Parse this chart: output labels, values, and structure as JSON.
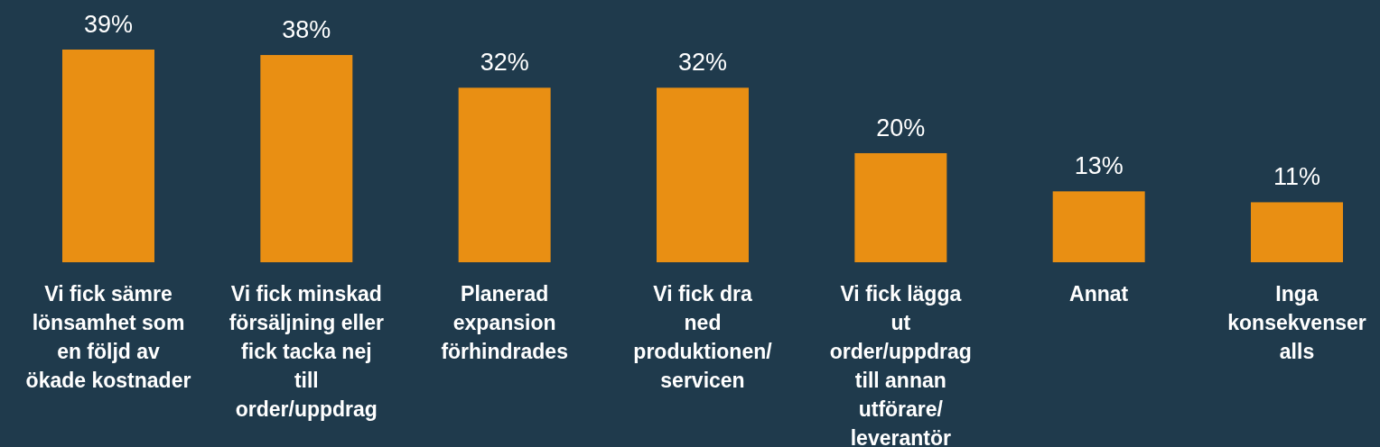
{
  "chart_data": {
    "type": "bar",
    "categories": [
      "Vi fick sämre\nlönsamhet som\nen följd av\nökade kostnader",
      "Vi fick minskad\nförsäljning eller\nfick tacka nej\ntill\norder/uppdrag",
      "Planerad\nexpansion\nförhindrades",
      "Vi fick dra\nned\nproduktionen/\nservicen",
      "Vi fick lägga\nut\norder/uppdrag\ntill annan\nutförare/\nleverantör",
      "Annat",
      "Inga\nkonsekvenser\nalls"
    ],
    "values": [
      39,
      38,
      32,
      32,
      20,
      13,
      11
    ],
    "value_labels": [
      "39%",
      "38%",
      "32%",
      "32%",
      "20%",
      "13%",
      "11%"
    ],
    "color": "#e98f13"
  }
}
